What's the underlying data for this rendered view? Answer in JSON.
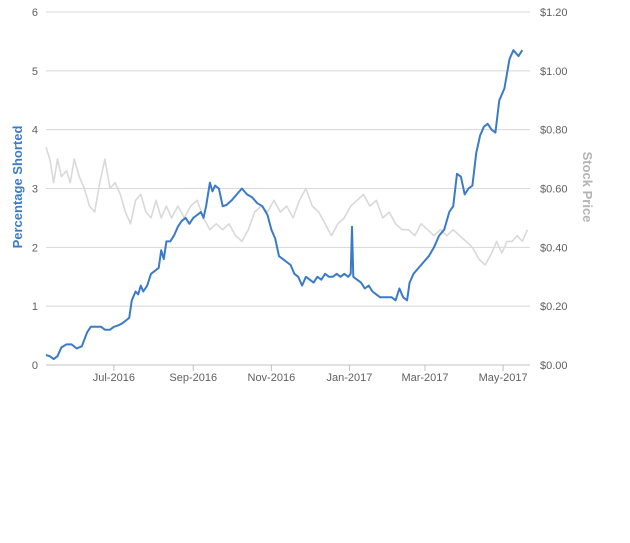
{
  "chart_data": {
    "type": "line",
    "y_left": {
      "label": "Percentage Shorted",
      "min": 0,
      "max": 6,
      "ticks": [
        0,
        1,
        2,
        3,
        4,
        5,
        6
      ],
      "tick_labels": [
        "0",
        "1",
        "2",
        "3",
        "4",
        "5",
        "6"
      ],
      "color": "#3a7bc8"
    },
    "y_right": {
      "label": "Stock Price",
      "min": 0,
      "max": 1.2,
      "ticks": [
        0,
        0.2,
        0.4,
        0.6,
        0.8,
        1.0,
        1.2
      ],
      "tick_labels": [
        "$0.00",
        "$0.20",
        "$0.40",
        "$0.60",
        "$0.80",
        "$1.00",
        "$1.20"
      ],
      "color": "#b3b3b3"
    },
    "x_axis": {
      "start": "2016-05-09",
      "end": "2017-05-22",
      "ticks": [
        "2016-07-01",
        "2016-09-01",
        "2016-11-01",
        "2017-01-01",
        "2017-03-01",
        "2017-05-01"
      ],
      "tick_labels": [
        "Jul-2016",
        "Sep-2016",
        "Nov-2016",
        "Jan-2017",
        "Mar-2017",
        "May-2017"
      ]
    },
    "grid": true,
    "series": [
      {
        "name": "Percentage Shorted",
        "axis": "left",
        "color": "#3a7bc8",
        "points": [
          [
            "2016-05-09",
            0.17
          ],
          [
            "2016-05-12",
            0.15
          ],
          [
            "2016-05-15",
            0.1
          ],
          [
            "2016-05-18",
            0.15
          ],
          [
            "2016-05-21",
            0.3
          ],
          [
            "2016-05-25",
            0.35
          ],
          [
            "2016-05-29",
            0.35
          ],
          [
            "2016-06-02",
            0.28
          ],
          [
            "2016-06-06",
            0.32
          ],
          [
            "2016-06-10",
            0.55
          ],
          [
            "2016-06-13",
            0.65
          ],
          [
            "2016-06-17",
            0.65
          ],
          [
            "2016-06-21",
            0.65
          ],
          [
            "2016-06-24",
            0.6
          ],
          [
            "2016-06-28",
            0.6
          ],
          [
            "2016-07-01",
            0.65
          ],
          [
            "2016-07-04",
            0.67
          ],
          [
            "2016-07-07",
            0.7
          ],
          [
            "2016-07-10",
            0.75
          ],
          [
            "2016-07-13",
            0.8
          ],
          [
            "2016-07-15",
            1.1
          ],
          [
            "2016-07-18",
            1.25
          ],
          [
            "2016-07-20",
            1.2
          ],
          [
            "2016-07-22",
            1.35
          ],
          [
            "2016-07-24",
            1.25
          ],
          [
            "2016-07-27",
            1.35
          ],
          [
            "2016-07-30",
            1.55
          ],
          [
            "2016-08-02",
            1.6
          ],
          [
            "2016-08-05",
            1.65
          ],
          [
            "2016-08-07",
            1.95
          ],
          [
            "2016-08-09",
            1.8
          ],
          [
            "2016-08-11",
            2.1
          ],
          [
            "2016-08-14",
            2.1
          ],
          [
            "2016-08-17",
            2.2
          ],
          [
            "2016-08-20",
            2.35
          ],
          [
            "2016-08-23",
            2.45
          ],
          [
            "2016-08-26",
            2.5
          ],
          [
            "2016-08-29",
            2.4
          ],
          [
            "2016-09-01",
            2.5
          ],
          [
            "2016-09-04",
            2.55
          ],
          [
            "2016-09-07",
            2.6
          ],
          [
            "2016-09-09",
            2.5
          ],
          [
            "2016-09-11",
            2.7
          ],
          [
            "2016-09-14",
            3.1
          ],
          [
            "2016-09-16",
            2.95
          ],
          [
            "2016-09-18",
            3.05
          ],
          [
            "2016-09-21",
            3.0
          ],
          [
            "2016-09-24",
            2.7
          ],
          [
            "2016-09-27",
            2.72
          ],
          [
            "2016-10-01",
            2.8
          ],
          [
            "2016-10-05",
            2.9
          ],
          [
            "2016-10-09",
            3.0
          ],
          [
            "2016-10-13",
            2.9
          ],
          [
            "2016-10-17",
            2.85
          ],
          [
            "2016-10-21",
            2.75
          ],
          [
            "2016-10-25",
            2.7
          ],
          [
            "2016-10-29",
            2.55
          ],
          [
            "2016-11-01",
            2.3
          ],
          [
            "2016-11-04",
            2.15
          ],
          [
            "2016-11-07",
            1.85
          ],
          [
            "2016-11-10",
            1.8
          ],
          [
            "2016-11-13",
            1.75
          ],
          [
            "2016-11-16",
            1.7
          ],
          [
            "2016-11-19",
            1.55
          ],
          [
            "2016-11-22",
            1.5
          ],
          [
            "2016-11-25",
            1.35
          ],
          [
            "2016-11-28",
            1.5
          ],
          [
            "2016-12-01",
            1.45
          ],
          [
            "2016-12-04",
            1.4
          ],
          [
            "2016-12-07",
            1.5
          ],
          [
            "2016-12-10",
            1.45
          ],
          [
            "2016-12-13",
            1.55
          ],
          [
            "2016-12-16",
            1.5
          ],
          [
            "2016-12-19",
            1.5
          ],
          [
            "2016-12-22",
            1.55
          ],
          [
            "2016-12-25",
            1.5
          ],
          [
            "2016-12-28",
            1.55
          ],
          [
            "2016-12-31",
            1.5
          ],
          [
            "2017-01-02",
            1.55
          ],
          [
            "2017-01-03",
            2.35
          ],
          [
            "2017-01-04",
            1.5
          ],
          [
            "2017-01-07",
            1.45
          ],
          [
            "2017-01-10",
            1.4
          ],
          [
            "2017-01-13",
            1.3
          ],
          [
            "2017-01-16",
            1.35
          ],
          [
            "2017-01-19",
            1.25
          ],
          [
            "2017-01-22",
            1.2
          ],
          [
            "2017-01-25",
            1.15
          ],
          [
            "2017-01-28",
            1.15
          ],
          [
            "2017-01-31",
            1.15
          ],
          [
            "2017-02-03",
            1.15
          ],
          [
            "2017-02-06",
            1.1
          ],
          [
            "2017-02-09",
            1.3
          ],
          [
            "2017-02-12",
            1.15
          ],
          [
            "2017-02-15",
            1.1
          ],
          [
            "2017-02-17",
            1.4
          ],
          [
            "2017-02-20",
            1.55
          ],
          [
            "2017-02-24",
            1.65
          ],
          [
            "2017-02-28",
            1.75
          ],
          [
            "2017-03-04",
            1.85
          ],
          [
            "2017-03-08",
            2.0
          ],
          [
            "2017-03-12",
            2.2
          ],
          [
            "2017-03-16",
            2.3
          ],
          [
            "2017-03-20",
            2.6
          ],
          [
            "2017-03-23",
            2.7
          ],
          [
            "2017-03-26",
            3.25
          ],
          [
            "2017-03-29",
            3.2
          ],
          [
            "2017-04-01",
            2.9
          ],
          [
            "2017-04-04",
            3.0
          ],
          [
            "2017-04-07",
            3.05
          ],
          [
            "2017-04-10",
            3.6
          ],
          [
            "2017-04-13",
            3.9
          ],
          [
            "2017-04-16",
            4.05
          ],
          [
            "2017-04-19",
            4.1
          ],
          [
            "2017-04-22",
            4.0
          ],
          [
            "2017-04-25",
            3.95
          ],
          [
            "2017-04-28",
            4.5
          ],
          [
            "2017-05-02",
            4.7
          ],
          [
            "2017-05-06",
            5.2
          ],
          [
            "2017-05-09",
            5.35
          ],
          [
            "2017-05-13",
            5.25
          ],
          [
            "2017-05-16",
            5.35
          ]
        ]
      },
      {
        "name": "Stock Price",
        "axis": "right",
        "color": "#d9d9d9",
        "points": [
          [
            "2016-05-09",
            0.74
          ],
          [
            "2016-05-12",
            0.7
          ],
          [
            "2016-05-15",
            0.62
          ],
          [
            "2016-05-18",
            0.7
          ],
          [
            "2016-05-21",
            0.64
          ],
          [
            "2016-05-25",
            0.66
          ],
          [
            "2016-05-28",
            0.62
          ],
          [
            "2016-05-31",
            0.7
          ],
          [
            "2016-06-04",
            0.64
          ],
          [
            "2016-06-08",
            0.6
          ],
          [
            "2016-06-12",
            0.54
          ],
          [
            "2016-06-16",
            0.52
          ],
          [
            "2016-06-20",
            0.62
          ],
          [
            "2016-06-24",
            0.7
          ],
          [
            "2016-06-28",
            0.6
          ],
          [
            "2016-07-02",
            0.62
          ],
          [
            "2016-07-06",
            0.58
          ],
          [
            "2016-07-10",
            0.52
          ],
          [
            "2016-07-14",
            0.48
          ],
          [
            "2016-07-18",
            0.56
          ],
          [
            "2016-07-22",
            0.58
          ],
          [
            "2016-07-26",
            0.52
          ],
          [
            "2016-07-30",
            0.5
          ],
          [
            "2016-08-03",
            0.56
          ],
          [
            "2016-08-07",
            0.5
          ],
          [
            "2016-08-11",
            0.54
          ],
          [
            "2016-08-15",
            0.5
          ],
          [
            "2016-08-20",
            0.54
          ],
          [
            "2016-08-25",
            0.5
          ],
          [
            "2016-08-30",
            0.54
          ],
          [
            "2016-09-04",
            0.56
          ],
          [
            "2016-09-09",
            0.5
          ],
          [
            "2016-09-14",
            0.46
          ],
          [
            "2016-09-19",
            0.48
          ],
          [
            "2016-09-24",
            0.46
          ],
          [
            "2016-09-29",
            0.48
          ],
          [
            "2016-10-04",
            0.44
          ],
          [
            "2016-10-09",
            0.42
          ],
          [
            "2016-10-14",
            0.46
          ],
          [
            "2016-10-19",
            0.52
          ],
          [
            "2016-10-24",
            0.54
          ],
          [
            "2016-10-29",
            0.52
          ],
          [
            "2016-11-03",
            0.56
          ],
          [
            "2016-11-08",
            0.52
          ],
          [
            "2016-11-13",
            0.54
          ],
          [
            "2016-11-18",
            0.5
          ],
          [
            "2016-11-23",
            0.56
          ],
          [
            "2016-11-28",
            0.6
          ],
          [
            "2016-12-03",
            0.54
          ],
          [
            "2016-12-08",
            0.52
          ],
          [
            "2016-12-13",
            0.48
          ],
          [
            "2016-12-18",
            0.44
          ],
          [
            "2016-12-23",
            0.48
          ],
          [
            "2016-12-28",
            0.5
          ],
          [
            "2017-01-02",
            0.54
          ],
          [
            "2017-01-07",
            0.56
          ],
          [
            "2017-01-12",
            0.58
          ],
          [
            "2017-01-17",
            0.54
          ],
          [
            "2017-01-22",
            0.56
          ],
          [
            "2017-01-27",
            0.5
          ],
          [
            "2017-02-01",
            0.52
          ],
          [
            "2017-02-06",
            0.48
          ],
          [
            "2017-02-11",
            0.46
          ],
          [
            "2017-02-16",
            0.46
          ],
          [
            "2017-02-21",
            0.44
          ],
          [
            "2017-02-26",
            0.48
          ],
          [
            "2017-03-03",
            0.46
          ],
          [
            "2017-03-08",
            0.44
          ],
          [
            "2017-03-13",
            0.46
          ],
          [
            "2017-03-18",
            0.44
          ],
          [
            "2017-03-23",
            0.46
          ],
          [
            "2017-03-28",
            0.44
          ],
          [
            "2017-04-02",
            0.42
          ],
          [
            "2017-04-07",
            0.4
          ],
          [
            "2017-04-12",
            0.36
          ],
          [
            "2017-04-17",
            0.34
          ],
          [
            "2017-04-22",
            0.38
          ],
          [
            "2017-04-26",
            0.42
          ],
          [
            "2017-04-30",
            0.38
          ],
          [
            "2017-05-04",
            0.42
          ],
          [
            "2017-05-08",
            0.42
          ],
          [
            "2017-05-12",
            0.44
          ],
          [
            "2017-05-16",
            0.42
          ],
          [
            "2017-05-20",
            0.46
          ]
        ]
      }
    ]
  }
}
